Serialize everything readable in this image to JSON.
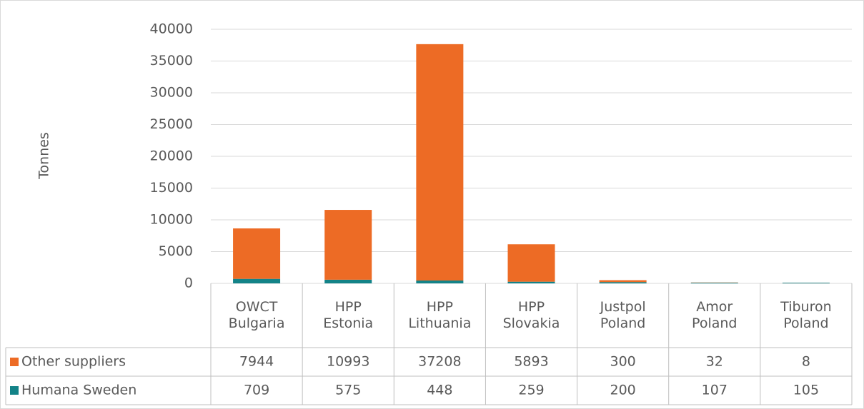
{
  "chart_data": {
    "type": "stacked_bar",
    "y_label": "Tonnes",
    "categories": [
      "OWCT Bulgaria",
      "HPP Estonia",
      "HPP Lithuania",
      "HPP Slovakia",
      "Justpol Poland",
      "Amor Poland",
      "Tiburon Poland"
    ],
    "series": [
      {
        "name": "Other suppliers",
        "color": "#ed6b25",
        "values": [
          7944,
          10993,
          37208,
          5893,
          300,
          32,
          8
        ]
      },
      {
        "name": "Humana Sweden",
        "color": "#138388",
        "values": [
          709,
          575,
          448,
          259,
          200,
          107,
          105
        ]
      }
    ],
    "ylim": [
      0,
      40000
    ],
    "yticks": [
      0,
      5000,
      10000,
      15000,
      20000,
      25000,
      30000,
      35000,
      40000
    ],
    "grid": true
  }
}
